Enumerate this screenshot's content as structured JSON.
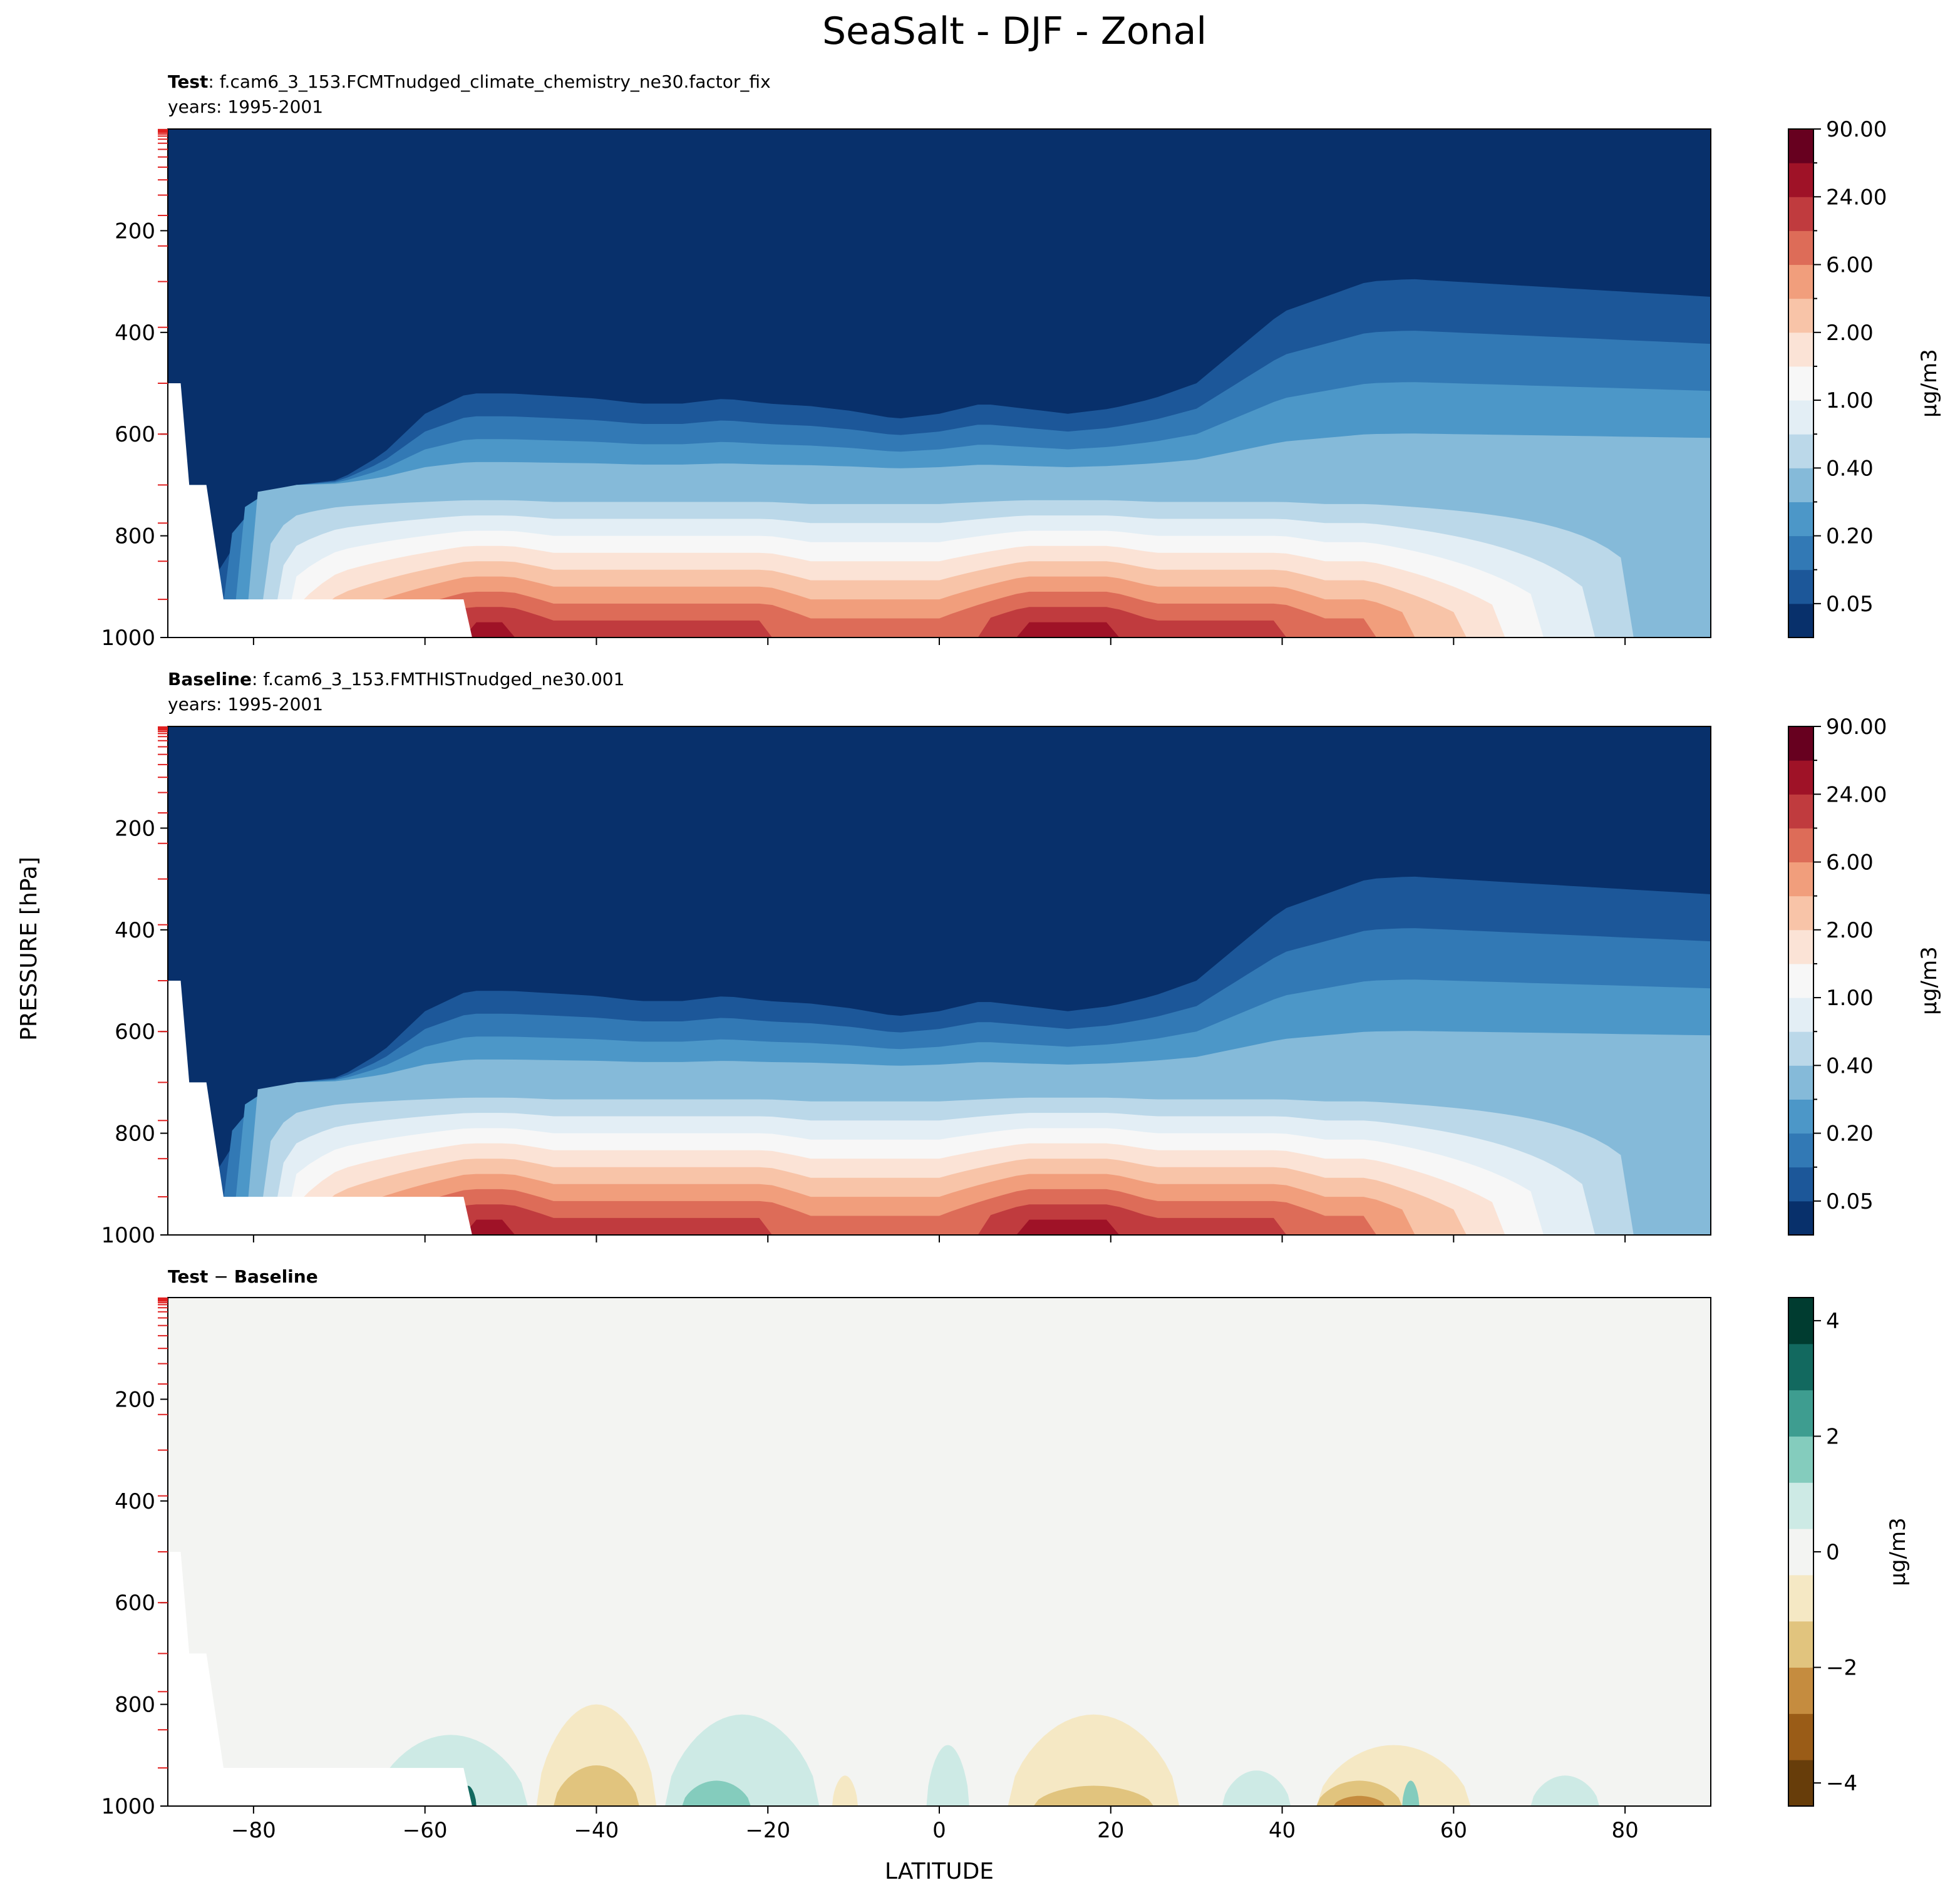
{
  "figure": {
    "suptitle": "SeaSalt - DJF - Zonal",
    "ylabel": "PRESSURE [hPa]",
    "xlabel": "LATITUDE"
  },
  "chart_data": [
    {
      "type": "heatmap",
      "panel": "test",
      "title_bold": "Test",
      "title_rest": ": f.cam6_3_153.FCMTnudged_climate_chemistry_ne30.factor_fix",
      "subtitle": "years: 1995-2001",
      "xlim": [
        -90,
        90
      ],
      "ylim": [
        1000,
        0
      ],
      "x_ticks": [
        -80,
        -60,
        -40,
        -20,
        0,
        20,
        40,
        60,
        80
      ],
      "y_ticks": [
        200,
        400,
        600,
        800,
        1000
      ],
      "colorbar": {
        "label": "μg/m3",
        "tick_labels": [
          "0.05",
          "0.20",
          "0.40",
          "1.00",
          "2.00",
          "6.00",
          "24.00",
          "90.00"
        ],
        "colors": [
          "#08306b",
          "#1c5799",
          "#3279b5",
          "#4c97c8",
          "#85bad9",
          "#bbd8e9",
          "#e3eef5",
          "#f7f7f7",
          "#fbe3d6",
          "#f8c4a8",
          "#f19e7c",
          "#dd6c58",
          "#c03b3e",
          "#9f1227",
          "#67001f"
        ]
      },
      "profile": {
        "lat": [
          -86,
          -80,
          -75,
          -70,
          -65,
          -60,
          -55,
          -50,
          -45,
          -40,
          -35,
          -30,
          -25,
          -20,
          -15,
          -10,
          -5,
          0,
          5,
          10,
          15,
          20,
          25,
          30,
          35,
          40,
          45,
          50,
          55,
          60,
          65,
          70,
          75,
          80,
          85,
          90
        ],
        "surface_level": [
          0,
          4,
          8,
          10,
          11,
          12,
          13,
          13,
          12,
          12,
          12,
          12,
          12,
          12,
          11,
          11,
          11,
          11,
          12,
          13,
          13,
          13,
          12,
          12,
          12,
          12,
          11,
          11,
          10,
          9,
          8,
          7,
          6,
          5,
          4,
          4
        ],
        "top_pressure": [
          920,
          760,
          700,
          690,
          640,
          560,
          520,
          520,
          525,
          530,
          540,
          540,
          530,
          540,
          545,
          555,
          570,
          560,
          540,
          550,
          560,
          550,
          530,
          500,
          430,
          360,
          330,
          300,
          295,
          300,
          305,
          310,
          315,
          320,
          325,
          330
        ],
        "bottom_pressure": [
          1000,
          1000,
          1000,
          1000,
          1000,
          1000,
          1000,
          1000,
          1000,
          1000,
          1000,
          1000,
          1000,
          1000,
          1000,
          1000,
          1000,
          1000,
          1000,
          1000,
          1000,
          1000,
          1000,
          1000,
          1000,
          1000,
          1000,
          1000,
          1000,
          1000,
          1000,
          1000,
          1000,
          1000,
          1000,
          1000
        ]
      }
    },
    {
      "type": "heatmap",
      "panel": "baseline",
      "title_bold": "Baseline",
      "title_rest": ": f.cam6_3_153.FMTHISTnudged_ne30.001",
      "subtitle": "years: 1995-2001",
      "xlim": [
        -90,
        90
      ],
      "ylim": [
        1000,
        0
      ],
      "x_ticks": [
        -80,
        -60,
        -40,
        -20,
        0,
        20,
        40,
        60,
        80
      ],
      "y_ticks": [
        200,
        400,
        600,
        800,
        1000
      ],
      "colorbar": {
        "label": "μg/m3",
        "tick_labels": [
          "0.05",
          "0.20",
          "0.40",
          "1.00",
          "2.00",
          "6.00",
          "24.00",
          "90.00"
        ],
        "colors": [
          "#08306b",
          "#1c5799",
          "#3279b5",
          "#4c97c8",
          "#85bad9",
          "#bbd8e9",
          "#e3eef5",
          "#f7f7f7",
          "#fbe3d6",
          "#f8c4a8",
          "#f19e7c",
          "#dd6c58",
          "#c03b3e",
          "#9f1227",
          "#67001f"
        ]
      },
      "profile": {
        "lat": [
          -86,
          -80,
          -75,
          -70,
          -65,
          -60,
          -55,
          -50,
          -45,
          -40,
          -35,
          -30,
          -25,
          -20,
          -15,
          -10,
          -5,
          0,
          5,
          10,
          15,
          20,
          25,
          30,
          35,
          40,
          45,
          50,
          55,
          60,
          65,
          70,
          75,
          80,
          85,
          90
        ],
        "surface_level": [
          0,
          4,
          8,
          10,
          11,
          12,
          13,
          13,
          12,
          12,
          12,
          12,
          12,
          12,
          11,
          11,
          11,
          11,
          12,
          13,
          13,
          13,
          12,
          12,
          12,
          12,
          11,
          11,
          10,
          9,
          8,
          7,
          6,
          5,
          4,
          4
        ],
        "top_pressure": [
          920,
          760,
          700,
          690,
          640,
          560,
          520,
          520,
          525,
          530,
          540,
          540,
          530,
          540,
          545,
          555,
          570,
          560,
          540,
          550,
          560,
          550,
          530,
          500,
          430,
          360,
          330,
          300,
          295,
          300,
          305,
          310,
          315,
          320,
          325,
          330
        ],
        "bottom_pressure": [
          1000,
          1000,
          1000,
          1000,
          1000,
          1000,
          1000,
          1000,
          1000,
          1000,
          1000,
          1000,
          1000,
          1000,
          1000,
          1000,
          1000,
          1000,
          1000,
          1000,
          1000,
          1000,
          1000,
          1000,
          1000,
          1000,
          1000,
          1000,
          1000,
          1000,
          1000,
          1000,
          1000,
          1000,
          1000,
          1000
        ]
      }
    },
    {
      "type": "heatmap",
      "panel": "difference",
      "title_bold_a": "Test",
      "title_sep": " − ",
      "title_bold_b": "Baseline",
      "xlim": [
        -90,
        90
      ],
      "ylim": [
        1000,
        0
      ],
      "x_ticks": [
        -80,
        -60,
        -40,
        -20,
        0,
        20,
        40,
        60,
        80
      ],
      "y_ticks": [
        200,
        400,
        600,
        800,
        1000
      ],
      "background_color": "#f3f4f2",
      "colorbar": {
        "label": "μg/m3",
        "ticks": [
          -4,
          -2,
          0,
          2,
          4
        ],
        "tick_labels": [
          "−4",
          "−2",
          "0",
          "2",
          "4"
        ],
        "range": [
          -4.4,
          4.4
        ],
        "colors": [
          "#673d0a",
          "#9a5c17",
          "#c58c3f",
          "#e1c47e",
          "#f5e8c4",
          "#f3f4f2",
          "#cdeae5",
          "#84ccbd",
          "#3e9d90",
          "#12695f",
          "#003c30"
        ]
      },
      "features": [
        {
          "lat": -57,
          "p_top": 860,
          "halfwidth": 9,
          "value": 1
        },
        {
          "lat": -55,
          "p_top": 960,
          "halfwidth": 1,
          "value": 4
        },
        {
          "lat": -40,
          "p_top": 800,
          "halfwidth": 7,
          "value": -1
        },
        {
          "lat": -40,
          "p_top": 920,
          "halfwidth": 5,
          "value": -2
        },
        {
          "lat": -23,
          "p_top": 820,
          "halfwidth": 9,
          "value": 1
        },
        {
          "lat": -26,
          "p_top": 950,
          "halfwidth": 4,
          "value": 2
        },
        {
          "lat": -11,
          "p_top": 940,
          "halfwidth": 1.5,
          "value": -1
        },
        {
          "lat": 1,
          "p_top": 880,
          "halfwidth": 2.5,
          "value": 1
        },
        {
          "lat": 18,
          "p_top": 820,
          "halfwidth": 10,
          "value": -1
        },
        {
          "lat": 18,
          "p_top": 960,
          "halfwidth": 7,
          "value": -2
        },
        {
          "lat": 37,
          "p_top": 930,
          "halfwidth": 4,
          "value": 1
        },
        {
          "lat": 53,
          "p_top": 880,
          "halfwidth": 9,
          "value": -1
        },
        {
          "lat": 49,
          "p_top": 950,
          "halfwidth": 5,
          "value": -2
        },
        {
          "lat": 49,
          "p_top": 980,
          "halfwidth": 3,
          "value": -3
        },
        {
          "lat": 55,
          "p_top": 950,
          "halfwidth": 1,
          "value": 2
        },
        {
          "lat": 73,
          "p_top": 940,
          "halfwidth": 4,
          "value": 1
        }
      ]
    }
  ]
}
